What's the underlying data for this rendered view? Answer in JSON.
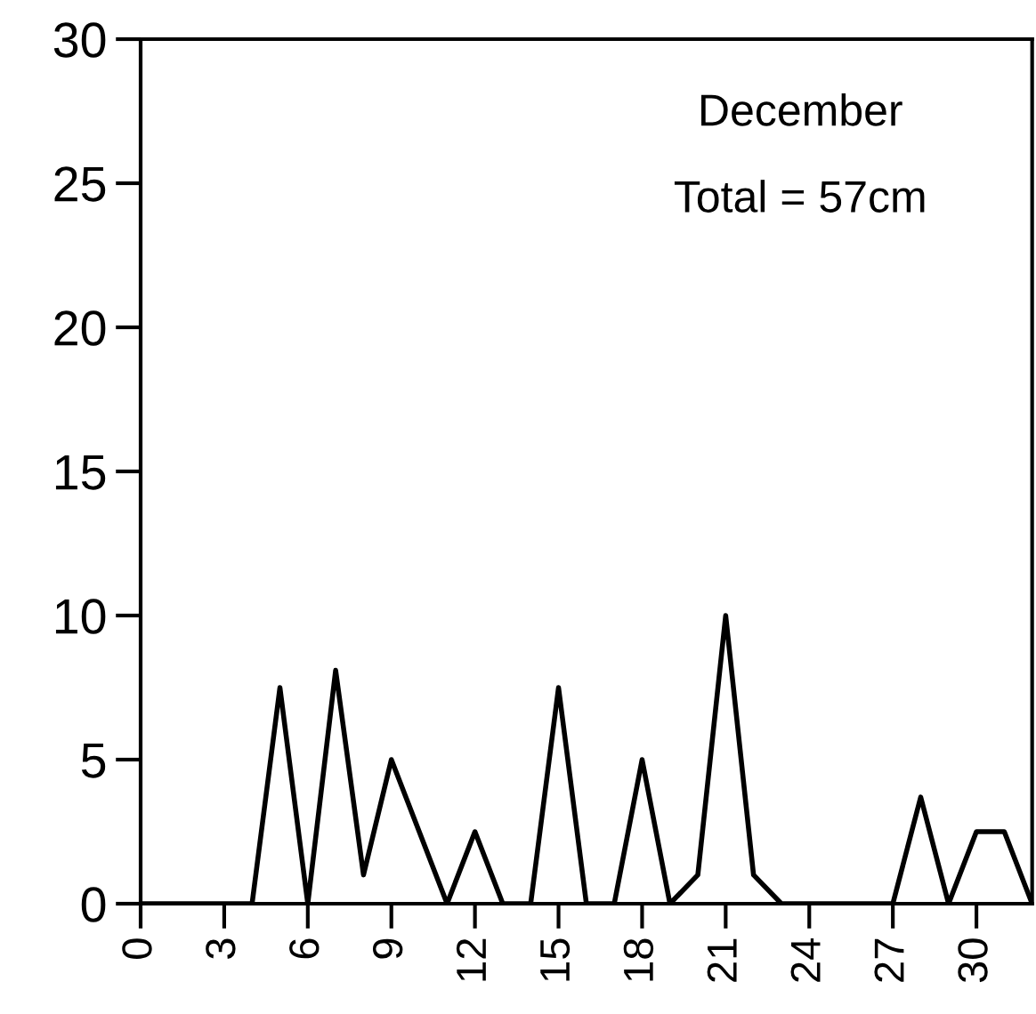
{
  "chart_data": {
    "type": "line",
    "annotations": [
      "December",
      "Total = 57cm"
    ],
    "x": [
      0,
      1,
      2,
      3,
      4,
      5,
      6,
      7,
      8,
      9,
      10,
      11,
      12,
      13,
      14,
      15,
      16,
      17,
      18,
      19,
      20,
      21,
      22,
      23,
      24,
      25,
      26,
      27,
      28,
      29,
      30,
      31,
      32
    ],
    "series": [
      {
        "color": "#000000",
        "values": [
          0,
          0,
          0,
          0,
          0,
          7.5,
          0,
          8.1,
          1,
          5,
          2.5,
          0,
          2.5,
          0,
          0,
          7.5,
          0,
          0,
          5,
          0,
          1,
          10,
          1,
          0,
          0,
          0,
          0,
          0,
          3.7,
          0,
          2.5,
          2.5,
          0
        ]
      }
    ],
    "xlim": [
      0,
      32
    ],
    "xticks": [
      0,
      3,
      6,
      9,
      12,
      15,
      18,
      21,
      24,
      27,
      30
    ],
    "ylim": [
      0,
      30
    ],
    "yticks": [
      0,
      5,
      10,
      15,
      20,
      25,
      30
    ],
    "grid": false,
    "legend": false,
    "marker": "none",
    "line_style": "solid"
  }
}
